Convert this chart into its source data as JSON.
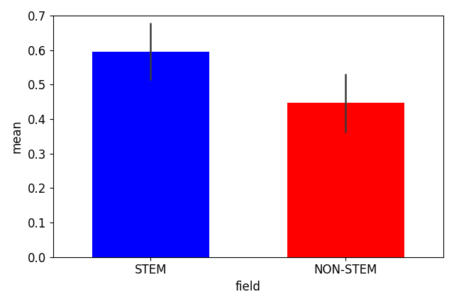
{
  "categories": [
    "STEM",
    "NON-STEM"
  ],
  "values": [
    0.596,
    0.448
  ],
  "colors": [
    "#0000ff",
    "#ff0000"
  ],
  "yerr_lower": [
    0.082,
    0.088
  ],
  "yerr_upper": [
    0.083,
    0.084
  ],
  "xlabel": "field",
  "ylabel": "mean",
  "ylim": [
    0.0,
    0.7
  ],
  "yticks": [
    0.0,
    0.1,
    0.2,
    0.3,
    0.4,
    0.5,
    0.6,
    0.7
  ],
  "x_positions": [
    0.5,
    1.5
  ],
  "xlim": [
    0.0,
    2.0
  ],
  "bar_width": 0.6,
  "capsize": 0,
  "error_color": "#3a3a3a",
  "error_linewidth": 1.8,
  "figsize": [
    6.4,
    4.29
  ],
  "dpi": 100
}
